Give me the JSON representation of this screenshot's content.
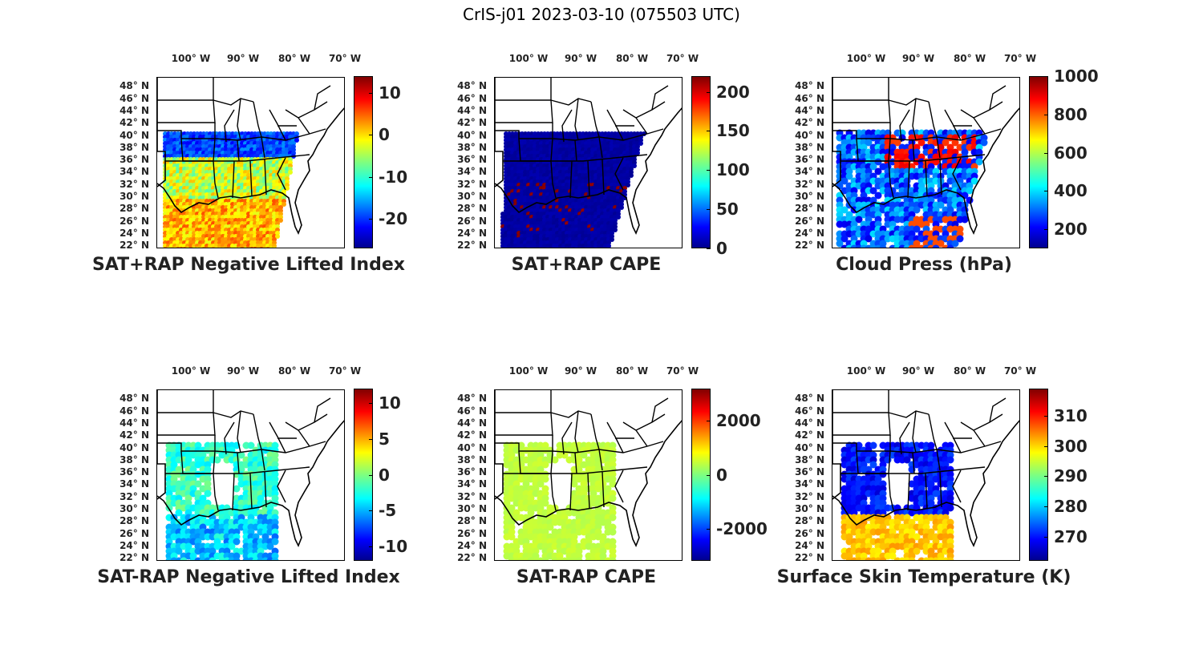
{
  "figure": {
    "title": "CrIS-j01 2023-03-10 (075503 UTC)"
  },
  "axes": {
    "lon_labels": [
      "100° W",
      "90° W",
      "80° W",
      "70° W"
    ],
    "lat_labels": [
      "48° N",
      "46° N",
      "44° N",
      "42° N",
      "40° N",
      "38° N",
      "36° N",
      "34° N",
      "32° N",
      "30° N",
      "28° N",
      "26° N",
      "24° N",
      "22° N"
    ]
  },
  "chart_data": [
    {
      "type": "heatmap",
      "title": "SAT+RAP Negative Lifted Index",
      "colormap": "jet",
      "clim": [
        -27,
        14
      ],
      "colorbar_ticks": [
        "10",
        "0",
        "-10",
        "-20"
      ],
      "colorbar_values": [
        10,
        0,
        -10,
        -20
      ],
      "lon_range": [
        -107,
        -70
      ],
      "lat_range": [
        21.5,
        49.5
      ]
    },
    {
      "type": "heatmap",
      "title": "SAT+RAP CAPE",
      "colormap": "jet",
      "clim": [
        0,
        220
      ],
      "colorbar_ticks": [
        "200",
        "150",
        "100",
        "50",
        "0"
      ],
      "colorbar_values": [
        200,
        150,
        100,
        50,
        0
      ],
      "lon_range": [
        -107,
        -70
      ],
      "lat_range": [
        21.5,
        49.5
      ]
    },
    {
      "type": "heatmap",
      "title": "Cloud Press (hPa)",
      "colormap": "jet",
      "clim": [
        100,
        1000
      ],
      "colorbar_ticks": [
        "1000",
        "800",
        "600",
        "400",
        "200"
      ],
      "colorbar_values": [
        1000,
        800,
        600,
        400,
        200
      ],
      "lon_range": [
        -107,
        -70
      ],
      "lat_range": [
        21.5,
        49.5
      ]
    },
    {
      "type": "heatmap",
      "title": "SAT-RAP Negative Lifted Index",
      "colormap": "jet",
      "clim": [
        -12,
        12
      ],
      "colorbar_ticks": [
        "10",
        "5",
        "0",
        "-5",
        "-10"
      ],
      "colorbar_values": [
        10,
        5,
        0,
        -5,
        -10
      ],
      "lon_range": [
        -107,
        -70
      ],
      "lat_range": [
        21.5,
        49.5
      ]
    },
    {
      "type": "heatmap",
      "title": "SAT-RAP CAPE",
      "colormap": "jet",
      "clim": [
        -3200,
        3200
      ],
      "colorbar_ticks": [
        "2000",
        "0",
        "-2000"
      ],
      "colorbar_values": [
        2000,
        0,
        -2000
      ],
      "lon_range": [
        -107,
        -70
      ],
      "lat_range": [
        21.5,
        49.5
      ]
    },
    {
      "type": "heatmap",
      "title": "Surface Skin Temperature (K)",
      "colormap": "jet",
      "clim": [
        262,
        319
      ],
      "colorbar_ticks": [
        "310",
        "300",
        "290",
        "280",
        "270"
      ],
      "colorbar_values": [
        310,
        300,
        290,
        280,
        270
      ],
      "lon_range": [
        -107,
        -70
      ],
      "lat_range": [
        21.5,
        49.5
      ]
    }
  ]
}
